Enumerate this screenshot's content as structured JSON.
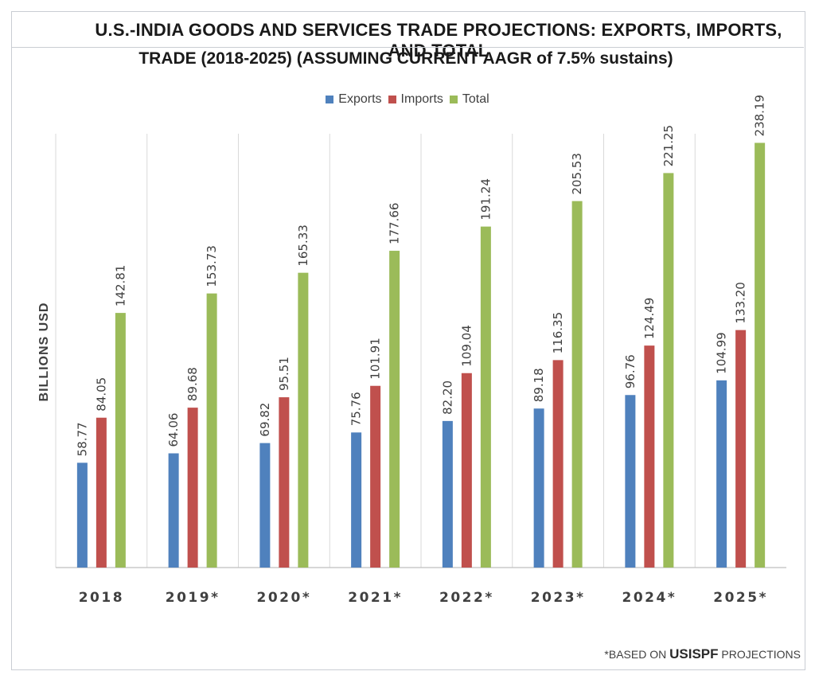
{
  "title_line_1": "U.S.-INDIA GOODS AND SERVICES TRADE PROJECTIONS: EXPORTS, IMPORTS, AND TOTAL",
  "title_line_2": "TRADE (2018-2025) (ASSUMING CURRENT AAGR of 7.5% sustains)",
  "footnote": {
    "prefix": "*BASED ON ",
    "org": "USISPF",
    "suffix": " PROJECTIONS"
  },
  "chart_data": {
    "type": "bar",
    "ylabel": "BILLIONS USD",
    "ylim": [
      0,
      250
    ],
    "grid": false,
    "legend_position": "top",
    "categories": [
      "2018",
      "2019*",
      "2020*",
      "2021*",
      "2022*",
      "2023*",
      "2024*",
      "2025*"
    ],
    "series": [
      {
        "name": "Exports",
        "color": "#4f81bd",
        "values": [
          58.77,
          64.06,
          69.82,
          75.76,
          82.2,
          89.18,
          96.76,
          104.99
        ]
      },
      {
        "name": "Imports",
        "color": "#c0504d",
        "values": [
          84.05,
          89.68,
          95.51,
          101.91,
          109.04,
          116.35,
          124.49,
          133.2
        ]
      },
      {
        "name": "Total",
        "color": "#9bbb59",
        "values": [
          142.81,
          153.73,
          165.33,
          177.66,
          191.24,
          205.53,
          221.25,
          238.19
        ]
      }
    ]
  }
}
